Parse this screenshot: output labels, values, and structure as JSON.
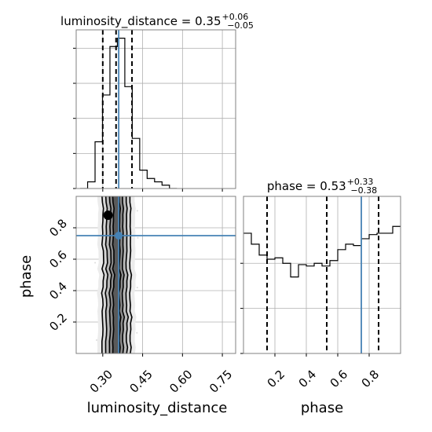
{
  "chart_data": [
    {
      "type": "histogram",
      "panel": "luminosity_distance marginal",
      "title": {
        "main": "luminosity_distance = 0.35",
        "sup": "+0.06",
        "sub": "−0.05"
      },
      "x": {
        "lim": [
          0.2,
          0.8
        ],
        "grid": [
          0.3,
          0.45,
          0.6,
          0.75
        ]
      },
      "bins": [
        0.215,
        0.243,
        0.271,
        0.299,
        0.327,
        0.355,
        0.383,
        0.411,
        0.439,
        0.467,
        0.495,
        0.523,
        0.551,
        0.579
      ],
      "counts": [
        0,
        0.04,
        0.28,
        0.56,
        0.85,
        0.9,
        0.61,
        0.3,
        0.11,
        0.06,
        0.04,
        0.02,
        0
      ],
      "y_grid": [
        0.0,
        0.21,
        0.42,
        0.63,
        0.84
      ],
      "quantiles": [
        0.3,
        0.35,
        0.41
      ],
      "truth": 0.36
    },
    {
      "type": "histogram",
      "panel": "phase marginal",
      "title": {
        "main": "phase = 0.53",
        "sup": "+0.33",
        "sub": "−0.38"
      },
      "x": {
        "lim": [
          0.0,
          1.0
        ],
        "grid": [
          0.2,
          0.4,
          0.6,
          0.8
        ]
      },
      "bins": [
        0.0,
        0.05,
        0.1,
        0.15,
        0.2,
        0.25,
        0.3,
        0.35,
        0.4,
        0.45,
        0.5,
        0.55,
        0.6,
        0.65,
        0.7,
        0.75,
        0.8,
        0.85,
        0.9,
        0.95,
        1.0
      ],
      "counts": [
        0.88,
        0.8,
        0.72,
        0.69,
        0.7,
        0.66,
        0.56,
        0.65,
        0.64,
        0.66,
        0.64,
        0.68,
        0.76,
        0.8,
        0.79,
        0.84,
        0.87,
        0.88,
        0.88,
        0.93
      ],
      "y_lim": [
        0,
        1.15
      ],
      "y_grid": [
        0.0,
        0.33,
        0.66
      ],
      "quantiles": [
        0.15,
        0.53,
        0.86
      ],
      "truth": 0.75
    },
    {
      "type": "density-contour",
      "panel": "luminosity_distance vs phase",
      "x": {
        "label": "luminosity_distance",
        "lim": [
          0.2,
          0.8
        ],
        "ticks": [
          "0.30",
          "0.45",
          "0.60",
          "0.75"
        ],
        "tick_values": [
          0.3,
          0.45,
          0.6,
          0.75
        ]
      },
      "y": {
        "label": "phase",
        "lim": [
          0.0,
          1.0
        ],
        "ticks": [
          "0.2",
          "0.4",
          "0.6",
          "0.8"
        ],
        "tick_values": [
          0.2,
          0.4,
          0.6,
          0.8
        ]
      },
      "truth": {
        "x": 0.36,
        "y": 0.75
      },
      "median": {
        "x": 0.35,
        "y": 0.53
      },
      "mode_blob": {
        "x": 0.32,
        "y": 0.88
      }
    },
    {
      "type": "histogram-axis",
      "panel": "phase x-axis",
      "x": {
        "label": "phase",
        "ticks": [
          "0.2",
          "0.4",
          "0.6",
          "0.8"
        ],
        "tick_values": [
          0.2,
          0.4,
          0.6,
          0.8
        ]
      }
    }
  ],
  "colors": {
    "truth": "#4682b4",
    "hist": "#000000",
    "grid": "#b0b0b0"
  },
  "labels": {
    "xlabel_left": "luminosity_distance",
    "xlabel_right": "phase",
    "ylabel": "phase",
    "top_title_main": "luminosity_distance = 0.35",
    "top_title_sup": "+0.06",
    "top_title_sub": "−0.05",
    "right_title_main": "phase = 0.53",
    "right_title_sup": "+0.33",
    "right_title_sub": "−0.38",
    "x_ticks_left": [
      "0.30",
      "0.45",
      "0.60",
      "0.75"
    ],
    "x_ticks_right": [
      "0.2",
      "0.4",
      "0.6",
      "0.8"
    ],
    "y_ticks_left": [
      "0.2",
      "0.4",
      "0.6",
      "0.8"
    ]
  }
}
